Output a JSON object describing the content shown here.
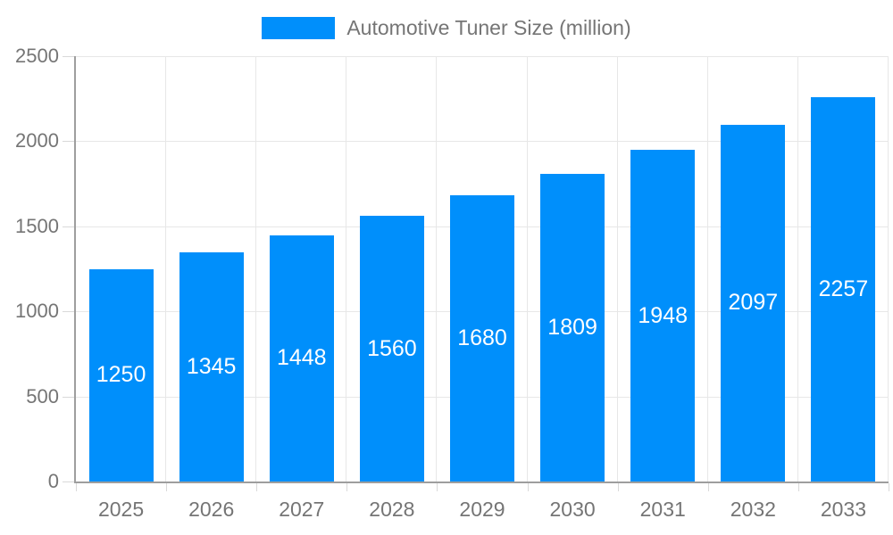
{
  "legend": {
    "label": "Automotive Tuner Size (million)"
  },
  "chart_data": {
    "type": "bar",
    "title": "Automotive Tuner Size (million)",
    "categories": [
      "2025",
      "2026",
      "2027",
      "2028",
      "2029",
      "2030",
      "2031",
      "2032",
      "2033"
    ],
    "values": [
      1250,
      1345,
      1448,
      1560,
      1680,
      1809,
      1948,
      2097,
      2257
    ],
    "xlabel": "",
    "ylabel": "",
    "ylim": [
      0,
      2500
    ],
    "yticks": [
      0,
      500,
      1000,
      1500,
      2000,
      2500
    ],
    "grid": true,
    "legend_position": "top",
    "bar_color": "#008FFB",
    "value_label_color": "#FFFFFF",
    "axis_text_color": "#757575",
    "axis_line_color": "#9E9E9E",
    "gridline_color": "#E7E7E7"
  }
}
